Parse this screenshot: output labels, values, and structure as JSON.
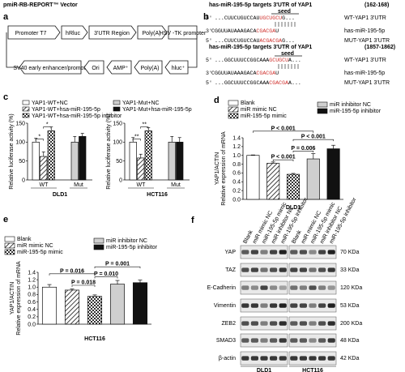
{
  "panel_labels": {
    "a": "a",
    "b": "b",
    "c": "c",
    "d": "d",
    "e": "e",
    "f": "f"
  },
  "panel_a": {
    "title": "pmiR-RB-REPORT™ Vector",
    "row1": [
      "Promoter T7",
      "hRluc",
      "3'UTR Region",
      "Poly(A)",
      "HSV -TK promoter"
    ],
    "row2": [
      "SV40 early enhancer/promoter",
      "Ori",
      "AMP⁺",
      "Poly(A)",
      "hluc⁺"
    ]
  },
  "panel_b": {
    "blocks": [
      {
        "title": "has-miR-195-5p targets 3'UTR of YAP1",
        "pos": "(162-168)",
        "seed": "seed",
        "lines": [
          {
            "p": "5'",
            "pre": "...CUUCUGUCCAU",
            "hl": "UGCUGCU",
            "post": "G...",
            "lab": "WT-YAP1 3'UTR"
          },
          {
            "p": "3'",
            "pre": "CGGUUAUAAAGACA",
            "hl": "CGACGA",
            "post": "U",
            "lab": "has-miR-195-5p"
          },
          {
            "p": "5'",
            "pre": "...CUUCUGUCCAU",
            "hl": "ACGACGA",
            "post": "G...",
            "lab": "MUT-YAP1 3'UTR"
          }
        ]
      },
      {
        "title": "has-miR-195-5p targets 3'UTR of YAP1",
        "pos": "(1857-1862)",
        "seed": "seed",
        "lines": [
          {
            "p": "5'",
            "pre": "...GGCUUUCCGGCAAA",
            "hl": "GCUGCU",
            "post": "A...",
            "lab": "WT-YAP1 3'UTR"
          },
          {
            "p": "3'",
            "pre": "CGGUUAUAAAGACA",
            "hl": "CGACGA",
            "post": "U",
            "lab": "has-miR-195-5p"
          },
          {
            "p": "5'",
            "pre": "...GGCUUUCCGGCAAA",
            "hl": "CGACGA",
            "post": "A...",
            "lab": "MUT-YAP1 3'UTR"
          }
        ]
      }
    ]
  },
  "chart_data": [
    {
      "type": "bar",
      "panel": "c-left",
      "xlabel": "DLD1",
      "ylabel": "Relative luciferase activity (%)",
      "ylim": [
        0,
        150
      ],
      "yticks": [
        0,
        50,
        100,
        150
      ],
      "groups": [
        "WT",
        "Mut"
      ],
      "legend": [
        "YAP1-WT+NC",
        "YAP1-WT+hsa-miR-195-5p",
        "YAP1-WT+hsa-miR-195-5p inhibitor",
        "YAP1-Mut+NC",
        "YAP1-Mut+hsa-miR-195-5p"
      ],
      "series": [
        {
          "name": "YAP1-WT+NC",
          "values": [
            100,
            null
          ]
        },
        {
          "name": "YAP1-WT+hsa-miR-195-5p",
          "values": [
            62,
            null
          ]
        },
        {
          "name": "YAP1-WT+hsa-miR-195-5p inhibitor",
          "values": [
            130,
            null
          ]
        },
        {
          "name": "YAP1-Mut+NC",
          "values": [
            null,
            100
          ]
        },
        {
          "name": "YAP1-Mut+hsa-miR-195-5p",
          "values": [
            null,
            115
          ]
        }
      ],
      "errors": [
        10,
        12,
        10,
        15,
        8
      ],
      "significance": [
        "*",
        "*"
      ]
    },
    {
      "type": "bar",
      "panel": "c-right",
      "xlabel": "HCT116",
      "ylabel": "Relative luciferase activity (%)",
      "ylim": [
        0,
        150
      ],
      "yticks": [
        0,
        50,
        100,
        150
      ],
      "groups": [
        "WT",
        "Mut"
      ],
      "series": [
        {
          "name": "YAP1-WT+NC",
          "values": [
            100,
            null
          ]
        },
        {
          "name": "YAP1-WT+hsa-miR-195-5p",
          "values": [
            58,
            null
          ]
        },
        {
          "name": "YAP1-WT+hsa-miR-195-5p inhibitor",
          "values": [
            130,
            null
          ]
        },
        {
          "name": "YAP1-Mut+NC",
          "values": [
            null,
            100
          ]
        },
        {
          "name": "YAP1-Mut+hsa-miR-195-5p",
          "values": [
            null,
            100
          ]
        }
      ],
      "errors": [
        12,
        10,
        8,
        15,
        12
      ],
      "significance": [
        "**",
        "**"
      ]
    },
    {
      "type": "bar",
      "panel": "d",
      "xlabel": "DLD1",
      "ylabel": "Relative expression of mRNA",
      "ylabel2": "YAP1/ACTIN",
      "ylim": [
        0,
        1.4
      ],
      "yticks": [
        0.0,
        0.2,
        0.4,
        0.6,
        0.8,
        1.0,
        1.2,
        1.4
      ],
      "categories": [
        "Blank",
        "miR mimic NC",
        "miR-195-5p mimic",
        "miR inhibitor NC",
        "miR-195-5p inhibitor"
      ],
      "values": [
        1.0,
        0.82,
        0.57,
        0.92,
        1.15
      ],
      "errors": [
        0.01,
        0.03,
        0.02,
        0.12,
        0.08
      ],
      "pvalues": [
        {
          "text": "P < 0.001",
          "from": 0,
          "to": 3
        },
        {
          "text": "P < 0.001",
          "from": 2,
          "to": 4
        },
        {
          "text": "P = 0.006",
          "from": 2,
          "to": 3
        },
        {
          "text": "P < 0.001",
          "from": 1,
          "to": 2
        }
      ]
    },
    {
      "type": "bar",
      "panel": "e",
      "xlabel": "HCT116",
      "ylabel": "Relative expression of mRNA",
      "ylabel2": "YAP1/ACTIN",
      "ylim": [
        0,
        1.4
      ],
      "yticks": [
        0.0,
        0.2,
        0.4,
        0.6,
        0.8,
        1.0,
        1.2,
        1.4
      ],
      "categories": [
        "Blank",
        "miR mimic NC",
        "miR-195-5p mimic",
        "miR inhibitor NC",
        "miR-195-5p inhibitor"
      ],
      "values": [
        1.0,
        0.92,
        0.75,
        1.08,
        1.12
      ],
      "errors": [
        0.07,
        0.03,
        0.04,
        0.1,
        0.07
      ],
      "pvalues": [
        {
          "text": "P = 0.001",
          "from": 2,
          "to": 4
        },
        {
          "text": "P = 0.016",
          "from": 0,
          "to": 2
        },
        {
          "text": "P = 0.010",
          "from": 2,
          "to": 3
        },
        {
          "text": "P = 0.018",
          "from": 1,
          "to": 2
        }
      ]
    }
  ],
  "legend_d": [
    "Blank",
    "miR mimic NC",
    "miR-195-5p mimic",
    "miR inhibitor NC",
    "miR-195-5p inhibitor"
  ],
  "panel_f": {
    "lanes": [
      "Blank",
      "miR mimic NC",
      "miR-195-5p mimic",
      "miR inhibitor NC",
      "miR-195-5p inhibitor"
    ],
    "proteins": [
      "YAP",
      "TAZ",
      "E-Cadherin",
      "Vimentin",
      "ZEB2",
      "SMAD3",
      "β-actin"
    ],
    "sizes": [
      "70 KDa",
      "33 KDa",
      "120 KDa",
      "53 KDa",
      "200 KDa",
      "48 KDa",
      "42 KDa"
    ],
    "cell_lines": [
      "DLD1",
      "HCT116"
    ]
  },
  "colors": {
    "bar_blank": "#ffffff",
    "bar_gray": "#cfcfcf",
    "bar_black": "#111111",
    "highlight": "#d0312d",
    "axis": "#111111"
  }
}
